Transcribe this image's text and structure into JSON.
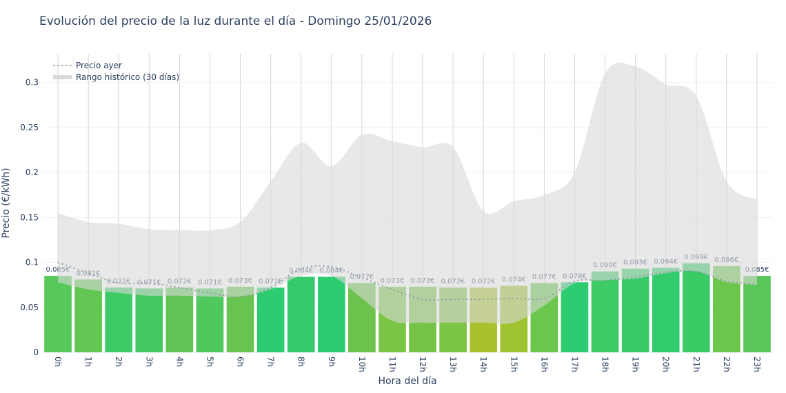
{
  "chart_data": {
    "type": "bar",
    "title": "Evolución del precio de la luz durante el día - Domingo 25/01/2026",
    "xlabel": "Hora del día",
    "ylabel": "Precio (€/kWh)",
    "ylim": [
      0,
      0.332
    ],
    "yticks": [
      0,
      0.05,
      0.1,
      0.15,
      0.2,
      0.25,
      0.3
    ],
    "ytick_labels": [
      "0",
      "0.05",
      "0.1",
      "0.15",
      "0.2",
      "0.25",
      "0.3"
    ],
    "grid": true,
    "legend_position": "top-left",
    "categories": [
      "0h",
      "1h",
      "2h",
      "3h",
      "4h",
      "5h",
      "6h",
      "7h",
      "8h",
      "9h",
      "10h",
      "11h",
      "12h",
      "13h",
      "14h",
      "15h",
      "16h",
      "17h",
      "18h",
      "19h",
      "20h",
      "21h",
      "22h",
      "23h"
    ],
    "values": [
      0.085,
      0.081,
      0.072,
      0.071,
      0.072,
      0.071,
      0.073,
      0.072,
      0.084,
      0.084,
      0.077,
      0.073,
      0.073,
      0.072,
      0.072,
      0.074,
      0.077,
      0.078,
      0.09,
      0.093,
      0.094,
      0.099,
      0.096,
      0.085
    ],
    "data_labels": [
      "0.085€",
      "0.081€",
      "0.072€",
      "0.071€",
      "0.072€",
      "0.071€",
      "0.073€",
      "0.072€",
      "0.084€",
      "0.084€",
      "0.077€",
      "0.073€",
      "0.073€",
      "0.072€",
      "0.072€",
      "0.074€",
      "0.077€",
      "0.078€",
      "0.090€",
      "0.093€",
      "0.094€",
      "0.099€",
      "0.096€",
      "0.085€"
    ],
    "bar_colors": [
      "#57c85a",
      "#62c653",
      "#3dcb66",
      "#44c962",
      "#60c555",
      "#4fc95e",
      "#68c450",
      "#2ecc71",
      "#33cb6c",
      "#2ecc71",
      "#6cc24c",
      "#7ac545",
      "#75c447",
      "#7cc444",
      "#a8c22e",
      "#9fc430",
      "#6ac64d",
      "#2ecc71",
      "#3dcb66",
      "#38cb69",
      "#33cc6c",
      "#3acb67",
      "#6cc64c",
      "#5ac759"
    ],
    "series": [
      {
        "name": "Precio ayer",
        "type": "line",
        "style": "dotted",
        "color": "#8c96a8",
        "values": [
          0.1,
          0.088,
          0.077,
          0.077,
          0.072,
          0.066,
          0.062,
          0.072,
          0.093,
          0.095,
          0.083,
          0.07,
          0.059,
          0.059,
          0.059,
          0.06,
          0.06,
          0.079,
          0.08,
          0.084,
          0.089,
          0.09,
          0.079,
          0.076
        ]
      },
      {
        "name": "Rango histórico (30 días)",
        "type": "area-band",
        "color": "#d9d9d9",
        "upper": [
          0.155,
          0.145,
          0.143,
          0.137,
          0.136,
          0.136,
          0.145,
          0.19,
          0.233,
          0.207,
          0.242,
          0.235,
          0.228,
          0.228,
          0.157,
          0.168,
          0.175,
          0.2,
          0.31,
          0.318,
          0.298,
          0.285,
          0.19,
          0.17
        ],
        "lower": [
          0.078,
          0.07,
          0.066,
          0.063,
          0.063,
          0.062,
          0.062,
          0.07,
          0.085,
          0.085,
          0.06,
          0.035,
          0.033,
          0.033,
          0.033,
          0.033,
          0.052,
          0.077,
          0.08,
          0.082,
          0.088,
          0.09,
          0.078,
          0.075
        ]
      }
    ]
  }
}
